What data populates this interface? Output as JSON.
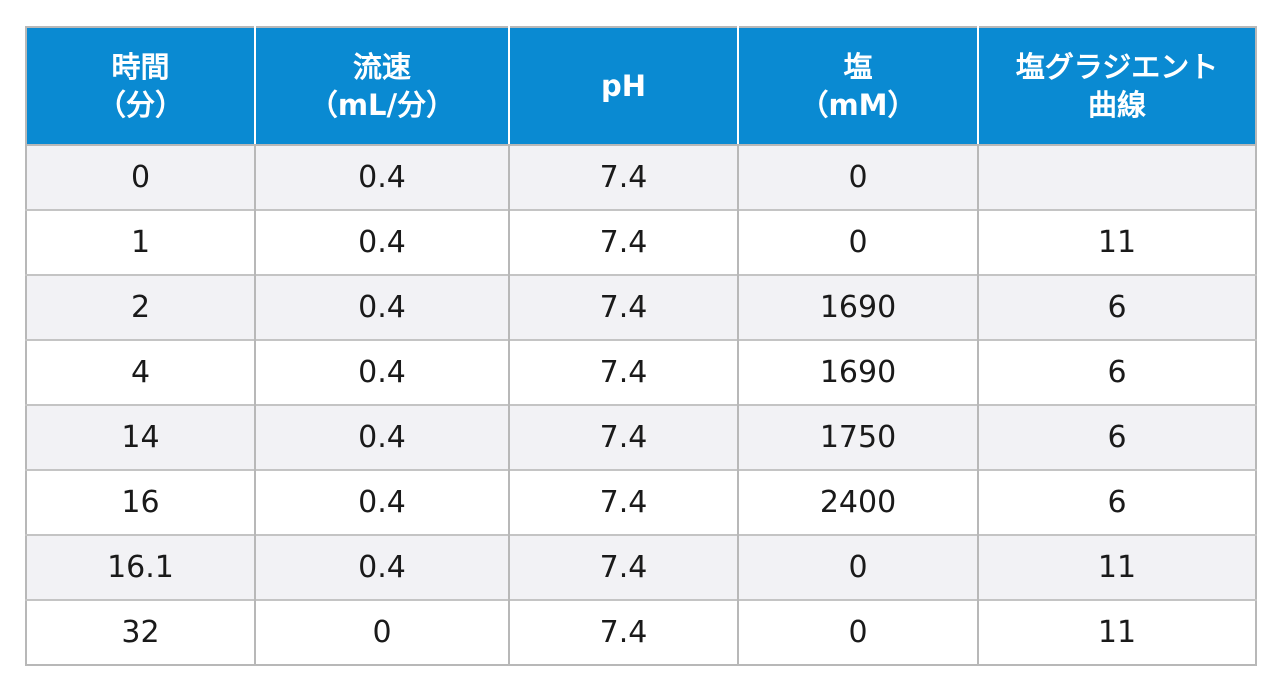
{
  "table": {
    "headers": [
      {
        "line1": "時間",
        "line2": "（分）"
      },
      {
        "line1": "流速",
        "line2": "（mL/分）"
      },
      {
        "line1": "pH",
        "line2": ""
      },
      {
        "line1": "塩",
        "line2": "（mM）"
      },
      {
        "line1": "塩グラジエント",
        "line2": "曲線"
      }
    ],
    "rows": [
      [
        "0",
        "0.4",
        "7.4",
        "0",
        ""
      ],
      [
        "1",
        "0.4",
        "7.4",
        "0",
        "11"
      ],
      [
        "2",
        "0.4",
        "7.4",
        "1690",
        "6"
      ],
      [
        "4",
        "0.4",
        "7.4",
        "1690",
        "6"
      ],
      [
        "14",
        "0.4",
        "7.4",
        "1750",
        "6"
      ],
      [
        "16",
        "0.4",
        "7.4",
        "2400",
        "6"
      ],
      [
        "16.1",
        "0.4",
        "7.4",
        "0",
        "11"
      ],
      [
        "32",
        "0",
        "7.4",
        "0",
        "11"
      ]
    ]
  },
  "colors": {
    "header_bg": "#0a8ad2",
    "header_text": "#ffffff",
    "row_alt_bg": "#f2f2f5",
    "border": "#b8b8b8"
  }
}
